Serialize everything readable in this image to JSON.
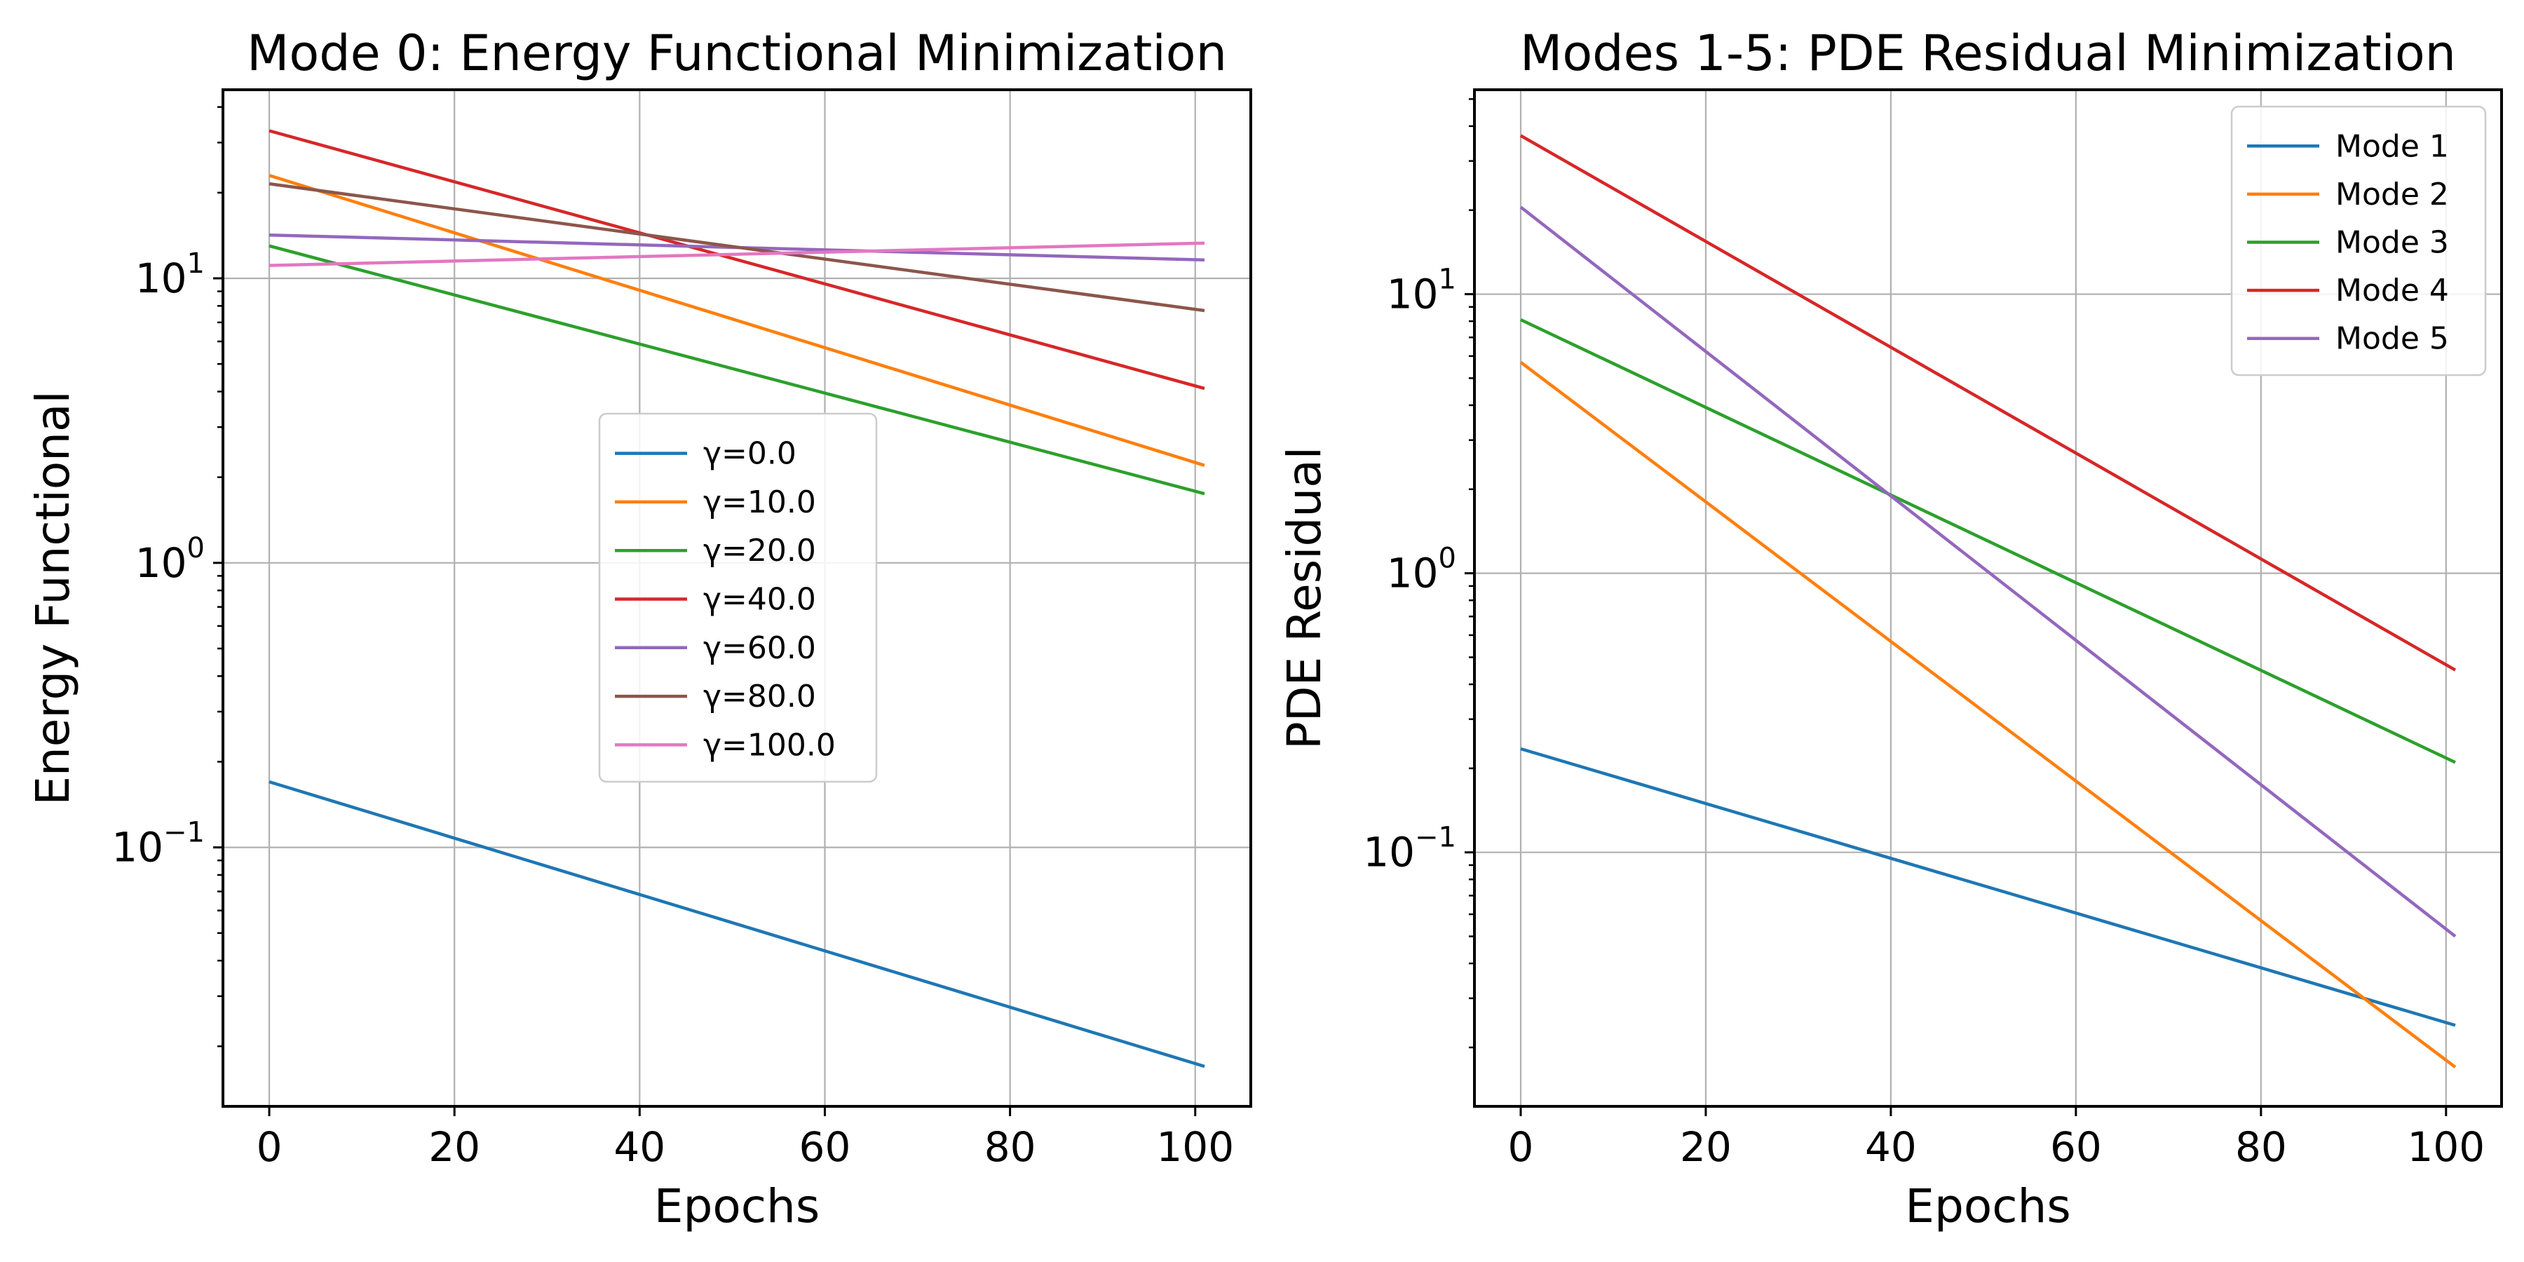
{
  "colors": {
    "tab_blue": "#1f77b4",
    "tab_orange": "#ff7f0e",
    "tab_green": "#2ca02c",
    "tab_red": "#d62728",
    "tab_purple": "#9467bd",
    "tab_brown": "#8c564b",
    "tab_pink": "#e377c2",
    "grid": "#b0b0b0",
    "axes": "#000000"
  },
  "chart_data": [
    {
      "type": "line",
      "title": "Mode 0: Energy Functional Minimization",
      "xlabel": "Epochs",
      "ylabel": "Energy Functional",
      "xlim": [
        -5,
        106
      ],
      "ylim": [
        0.0123,
        46
      ],
      "yscale": "log",
      "grid": true,
      "legend_position": "center",
      "x_ticks": [
        "0",
        "20",
        "40",
        "60",
        "80",
        "100"
      ],
      "y_ticks": [
        {
          "base": "10",
          "exp": "−1",
          "value": 0.1
        },
        {
          "base": "10",
          "exp": "0",
          "value": 1
        },
        {
          "base": "10",
          "exp": "1",
          "value": 10
        }
      ],
      "series": [
        {
          "name": "γ=0.0",
          "color": "#1f77b4",
          "x": [
            0,
            101
          ],
          "y": [
            0.17,
            0.017
          ]
        },
        {
          "name": "γ=10.0",
          "color": "#ff7f0e",
          "x": [
            0,
            101
          ],
          "y": [
            23,
            2.2
          ]
        },
        {
          "name": "γ=20.0",
          "color": "#2ca02c",
          "x": [
            0,
            101
          ],
          "y": [
            13,
            1.75
          ]
        },
        {
          "name": "γ=40.0",
          "color": "#d62728",
          "x": [
            0,
            101
          ],
          "y": [
            33,
            4.1
          ]
        },
        {
          "name": "γ=60.0",
          "color": "#9467bd",
          "x": [
            0,
            101
          ],
          "y": [
            14.2,
            11.6
          ]
        },
        {
          "name": "γ=80.0",
          "color": "#8c564b",
          "x": [
            0,
            101
          ],
          "y": [
            21.5,
            7.7
          ]
        },
        {
          "name": "γ=100.0",
          "color": "#e377c2",
          "x": [
            0,
            101
          ],
          "y": [
            11.1,
            13.3
          ]
        }
      ]
    },
    {
      "type": "line",
      "title": "Modes 1-5: PDE Residual Minimization",
      "xlabel": "Epochs",
      "ylabel": "PDE Residual",
      "xlim": [
        -5,
        106
      ],
      "ylim": [
        0.0123,
        54
      ],
      "yscale": "log",
      "grid": true,
      "legend_position": "top-right",
      "x_ticks": [
        "0",
        "20",
        "40",
        "60",
        "80",
        "100"
      ],
      "y_ticks": [
        {
          "base": "10",
          "exp": "−1",
          "value": 0.1
        },
        {
          "base": "10",
          "exp": "0",
          "value": 1
        },
        {
          "base": "10",
          "exp": "1",
          "value": 10
        }
      ],
      "series": [
        {
          "name": "Mode 1",
          "color": "#1f77b4",
          "x": [
            0,
            101
          ],
          "y": [
            0.235,
            0.024
          ]
        },
        {
          "name": "Mode 2",
          "color": "#ff7f0e",
          "x": [
            0,
            101
          ],
          "y": [
            5.7,
            0.017
          ]
        },
        {
          "name": "Mode 3",
          "color": "#2ca02c",
          "x": [
            0,
            101
          ],
          "y": [
            8.1,
            0.21
          ]
        },
        {
          "name": "Mode 4",
          "color": "#d62728",
          "x": [
            0,
            101
          ],
          "y": [
            37,
            0.45
          ]
        },
        {
          "name": "Mode 5",
          "color": "#9467bd",
          "x": [
            0,
            101
          ],
          "y": [
            20.5,
            0.05
          ]
        }
      ]
    }
  ]
}
